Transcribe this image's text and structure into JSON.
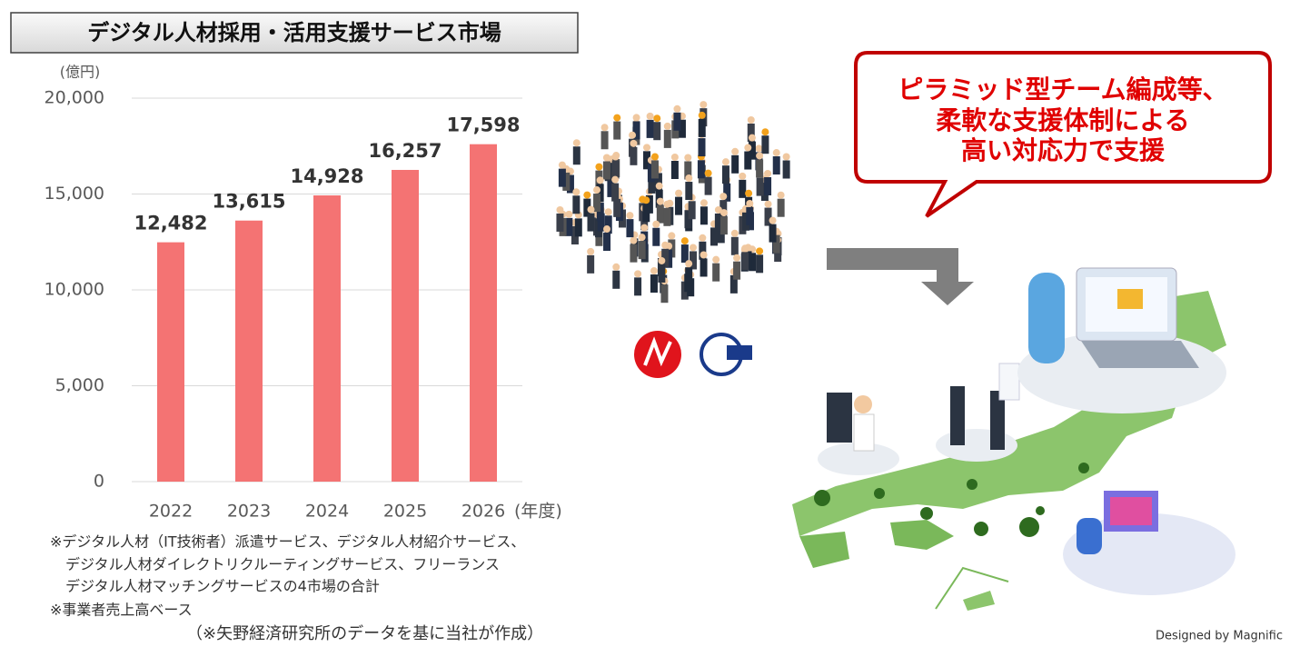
{
  "chart_data": {
    "type": "bar",
    "title": "デジタル人材採用・活用支援サービス市場",
    "y_unit": "(億円)",
    "x_unit": "(年度)",
    "categories": [
      "2022",
      "2023",
      "2024",
      "2025",
      "2026"
    ],
    "values": [
      12482,
      13615,
      14928,
      16257,
      17598
    ],
    "value_labels": [
      "12,482",
      "13,615",
      "14,928",
      "16,257",
      "17,598"
    ],
    "color": "#f47373",
    "ylim": [
      0,
      20000
    ],
    "yticks": [
      0,
      {
        "value": 5000,
        "label": "5,000"
      },
      {
        "value": 10000,
        "label": "10,000"
      },
      {
        "value": 15000,
        "label": "15,000"
      },
      {
        "value": 20000,
        "label": "20,000"
      }
    ],
    "grid": true,
    "notes": [
      "※デジタル人材（IT技術者）派遣サービス、デジタル人材紹介サービス、",
      "デジタル人材ダイレクトリクルーティングサービス、フリーランス",
      "デジタル人材マッチングサービスの4市場の合計",
      "※事業者売上高ベース"
    ],
    "source": "（※矢野経済研究所のデータを基に当社が作成）"
  },
  "callout": {
    "lines": [
      "ピラミッド型チーム編成等、",
      "柔軟な支援体制による",
      "高い対応力で支援"
    ]
  },
  "credit": "Designed by Magnific"
}
